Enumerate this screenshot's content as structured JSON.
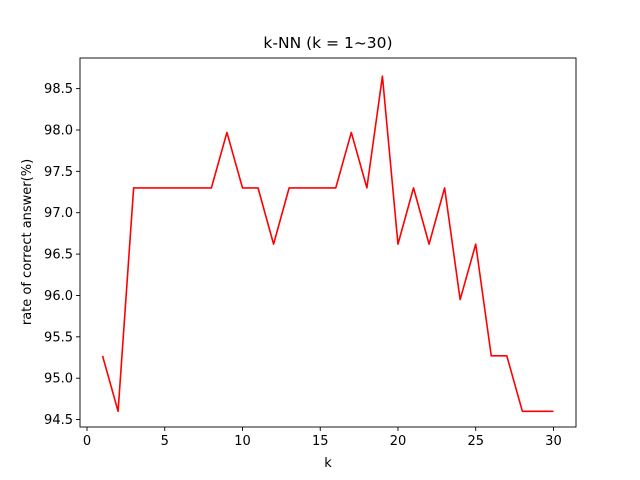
{
  "chart_data": {
    "type": "line",
    "title": "k-NN (k = 1~30)",
    "xlabel": "k",
    "ylabel": "rate of correct answer(%)",
    "xlim": [
      -0.45,
      31.45
    ],
    "ylim": [
      94.41,
      98.87
    ],
    "xticks": [
      0,
      5,
      10,
      15,
      20,
      25,
      30
    ],
    "yticks": [
      94.5,
      95.0,
      95.5,
      96.0,
      96.5,
      97.0,
      97.5,
      98.0,
      98.5
    ],
    "ytick_labels": [
      "94.5",
      "95.0",
      "95.5",
      "96.0",
      "96.5",
      "97.0",
      "97.5",
      "98.0",
      "98.5"
    ],
    "grid": false,
    "series": [
      {
        "color": "#ff0000",
        "x": [
          1,
          2,
          3,
          4,
          5,
          6,
          7,
          8,
          9,
          10,
          11,
          12,
          13,
          14,
          15,
          16,
          17,
          18,
          19,
          20,
          21,
          22,
          23,
          24,
          25,
          26,
          27,
          28,
          29,
          30
        ],
        "y": [
          95.27,
          94.6,
          97.3,
          97.3,
          97.3,
          97.3,
          97.3,
          97.3,
          97.97,
          97.3,
          97.3,
          96.62,
          97.3,
          97.3,
          97.3,
          97.3,
          97.97,
          97.3,
          98.65,
          96.62,
          97.3,
          96.62,
          97.3,
          95.95,
          96.62,
          95.27,
          95.27,
          94.6,
          94.6,
          94.6
        ]
      }
    ]
  }
}
